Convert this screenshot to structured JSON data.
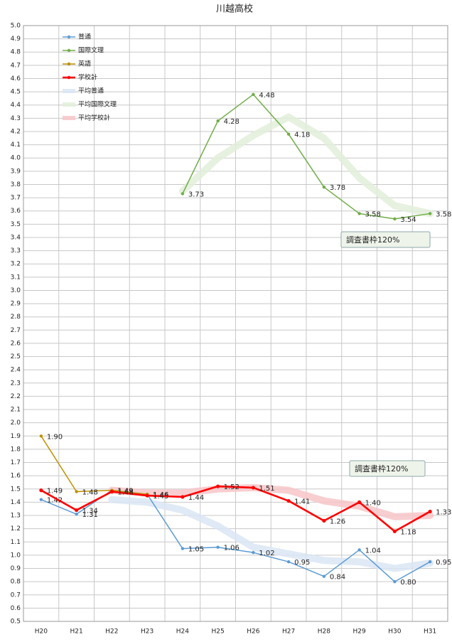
{
  "chart_data": {
    "type": "line",
    "title": "川越高校",
    "categories": [
      "H20",
      "H21",
      "H22",
      "H23",
      "H24",
      "H25",
      "H26",
      "H27",
      "H28",
      "H29",
      "H30",
      "H31"
    ],
    "ylim": [
      0.5,
      5.0
    ],
    "yticks": [
      {
        "value": 5.0,
        "label": "5.0"
      },
      4.9,
      4.8,
      4.7,
      4.6,
      4.5,
      4.4,
      4.3,
      4.2,
      4.1,
      {
        "value": 4.0,
        "label": "4.0"
      },
      3.9,
      3.8,
      3.7,
      3.6,
      3.5,
      3.4,
      3.3,
      3.2,
      3.1,
      {
        "value": 3.0,
        "label": "3.0"
      },
      2.9,
      2.8,
      2.7,
      2.6,
      2.5,
      2.4,
      2.3,
      2.2,
      2.1,
      {
        "value": 2.0,
        "label": "2.0"
      },
      1.9,
      1.8,
      1.7,
      1.6,
      1.5,
      1.4,
      1.3,
      1.2,
      1.1,
      {
        "value": 1.0,
        "label": "1.0"
      },
      0.9,
      0.8,
      0.7,
      0.6,
      0.5
    ],
    "grid": true,
    "legend": "top-left",
    "series": [
      {
        "name": "平均普通",
        "color": "#dae6f5",
        "markers": false,
        "values": [
          null,
          null,
          1.42,
          1.4,
          1.34,
          1.22,
          1.06,
          1.01,
          0.96,
          0.95,
          0.9,
          0.94
        ]
      },
      {
        "name": "平均国際文理",
        "color": "#e3efda",
        "markers": false,
        "values": [
          null,
          null,
          null,
          null,
          3.75,
          4.0,
          4.17,
          4.31,
          4.15,
          3.85,
          3.64,
          3.58
        ]
      },
      {
        "name": "平均学校計",
        "color": "#f7c6c8",
        "markers": false,
        "values": [
          null,
          null,
          1.49,
          1.47,
          1.47,
          1.5,
          1.51,
          1.49,
          1.41,
          1.37,
          1.29,
          1.3
        ]
      },
      {
        "name": "普通",
        "color": "#5b9bd5",
        "markers": true,
        "values": [
          1.42,
          1.31,
          1.49,
          1.46,
          1.05,
          1.06,
          1.02,
          0.95,
          0.84,
          1.04,
          0.8,
          0.95
        ],
        "value_labels": [
          "1.42",
          "1.31",
          "1.49",
          "1.46",
          "1.05",
          "1.06",
          "1.02",
          "0.95",
          "0.84",
          "1.04",
          "0.80",
          "0.95"
        ]
      },
      {
        "name": "国際文理",
        "color": "#70ad47",
        "markers": true,
        "values": [
          null,
          null,
          null,
          null,
          3.73,
          4.28,
          4.48,
          4.18,
          3.78,
          3.58,
          3.54,
          3.58
        ],
        "value_labels": [
          null,
          null,
          null,
          null,
          "3.73",
          "4.28",
          "4.48",
          "4.18",
          "3.78",
          "3.58",
          "3.54",
          "3.58"
        ]
      },
      {
        "name": "英語",
        "color": "#bf9000",
        "markers": true,
        "values": [
          1.9,
          1.48,
          1.49,
          1.46,
          null,
          null,
          null,
          null,
          null,
          null,
          null,
          null
        ],
        "value_labels": [
          "1.90",
          "1.48",
          "1.49",
          "1.46",
          null,
          null,
          null,
          null,
          null,
          null,
          null,
          null
        ]
      },
      {
        "name": "学校計",
        "color": "#ff0000",
        "markers": true,
        "bold": true,
        "values": [
          1.49,
          1.34,
          1.48,
          1.45,
          1.44,
          1.52,
          1.51,
          1.41,
          1.26,
          1.4,
          1.18,
          1.33
        ],
        "value_labels": [
          "1.49",
          "1.34",
          "1.48",
          "1.45",
          "1.44",
          "1.52",
          "1.51",
          "1.41",
          "1.26",
          "1.40",
          "1.18",
          "1.33"
        ]
      }
    ],
    "legend_order": [
      3,
      4,
      5,
      6,
      0,
      1,
      2
    ],
    "annotations": [
      "調査書枠120%",
      "調査書枠120%"
    ]
  }
}
